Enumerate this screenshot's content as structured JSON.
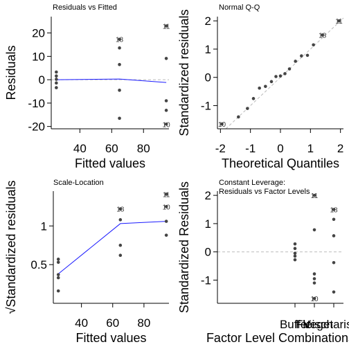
{
  "chart_data": [
    {
      "type": "scatter",
      "title": "Residuals vs Fitted",
      "xlabel": "Fitted values",
      "ylabel": "Residuals",
      "xlim": [
        22,
        96
      ],
      "ylim": [
        -21,
        27
      ],
      "xticks": [
        40,
        60,
        80
      ],
      "yticks": [
        -20,
        -10,
        0,
        10,
        20
      ],
      "reference_line": 0,
      "points": [
        {
          "x": 25.2,
          "y": 3.3
        },
        {
          "x": 25.2,
          "y": 1.6
        },
        {
          "x": 25.2,
          "y": 0.2
        },
        {
          "x": 25.2,
          "y": -1.4
        },
        {
          "x": 25.2,
          "y": -3.4
        },
        {
          "x": 64.9,
          "y": 13.6
        },
        {
          "x": 64.9,
          "y": 6.5
        },
        {
          "x": 64.9,
          "y": -4.5
        },
        {
          "x": 64.9,
          "y": -16.5
        },
        {
          "x": 94.3,
          "y": 9.1
        },
        {
          "x": 94.3,
          "y": -9.0
        },
        {
          "x": 94.3,
          "y": -13.1
        }
      ],
      "labeled_points": [
        {
          "label": "11",
          "x": 94.3,
          "y": 23.0
        },
        {
          "label": "18",
          "x": 64.9,
          "y": 17.3
        },
        {
          "label": "10",
          "x": 94.3,
          "y": -19.0
        }
      ],
      "smooth": {
        "x": [
          25.2,
          64.9,
          94.3
        ],
        "y": [
          0,
          0.3,
          -1.2
        ]
      }
    },
    {
      "type": "scatter",
      "title": "Normal Q-Q",
      "xlabel": "Theoretical Quantiles",
      "ylabel": "Standardized residuals",
      "xlim": [
        -2.1,
        2.1
      ],
      "ylim": [
        -1.82,
        2.15
      ],
      "xticks": [
        -2,
        -1,
        0,
        1,
        2
      ],
      "yticks": [
        -1,
        0,
        1,
        2
      ],
      "reference_line": "diagonal",
      "points": [
        {
          "x": -1.4,
          "y": -1.4
        },
        {
          "x": -1.1,
          "y": -1.1
        },
        {
          "x": -0.9,
          "y": -0.75
        },
        {
          "x": -0.7,
          "y": -0.38
        },
        {
          "x": -0.5,
          "y": -0.32
        },
        {
          "x": -0.3,
          "y": -0.15
        },
        {
          "x": -0.15,
          "y": 0.03
        },
        {
          "x": 0.0,
          "y": 0.05
        },
        {
          "x": 0.15,
          "y": 0.13
        },
        {
          "x": 0.3,
          "y": 0.3
        },
        {
          "x": 0.5,
          "y": 0.57
        },
        {
          "x": 0.7,
          "y": 0.76
        },
        {
          "x": 0.9,
          "y": 0.78
        },
        {
          "x": 1.1,
          "y": 1.15
        }
      ],
      "labeled_points": [
        {
          "label": "11",
          "x": 1.95,
          "y": 2.0
        },
        {
          "label": "18",
          "x": 1.4,
          "y": 1.5
        },
        {
          "label": "10",
          "x": -1.95,
          "y": -1.65
        }
      ]
    },
    {
      "type": "scatter",
      "title": "Scale-Location",
      "xlabel": "Fitted values",
      "ylabel": "Standardized residuals",
      "ylabel_prefix": "√",
      "xlim": [
        22,
        96
      ],
      "ylim": [
        0.0,
        1.45
      ],
      "xticks": [
        40,
        60,
        80
      ],
      "yticks": [
        0.5,
        1.0
      ],
      "points": [
        {
          "x": 25.2,
          "y": 0.57
        },
        {
          "x": 25.2,
          "y": 0.53
        },
        {
          "x": 25.2,
          "y": 0.37
        },
        {
          "x": 25.2,
          "y": 0.33
        },
        {
          "x": 25.2,
          "y": 0.16
        },
        {
          "x": 64.9,
          "y": 1.08
        },
        {
          "x": 64.9,
          "y": 0.75
        },
        {
          "x": 64.9,
          "y": 0.62
        },
        {
          "x": 94.3,
          "y": 1.06
        },
        {
          "x": 94.3,
          "y": 0.88
        }
      ],
      "labeled_points": [
        {
          "label": "11",
          "x": 94.3,
          "y": 1.41
        },
        {
          "label": "18",
          "x": 64.9,
          "y": 1.22
        },
        {
          "label": "10",
          "x": 94.3,
          "y": 1.25
        }
      ],
      "smooth": {
        "x": [
          25.2,
          64.9,
          94.3
        ],
        "y": [
          0.38,
          1.03,
          1.06
        ]
      }
    },
    {
      "type": "scatter",
      "title": "Constant Leverage:",
      "subtitle": "Residuals vs Factor Levels",
      "xlabel": "Factor Level Combinations",
      "ylabel": "Standardized Residuals",
      "xlim": [
        -3,
        3.5
      ],
      "ylim": [
        -1.82,
        2.15
      ],
      "categories": [
        "Buffet",
        "Fleisch",
        "Vegetarisch"
      ],
      "category_x": [
        1,
        2,
        3
      ],
      "yticks": [
        -1,
        0,
        1,
        2
      ],
      "reference_line": 0,
      "points": [
        {
          "x": 1,
          "y": 0.28
        },
        {
          "x": 1,
          "y": 0.12
        },
        {
          "x": 1,
          "y": -0.05
        },
        {
          "x": 1,
          "y": -0.15
        },
        {
          "x": 1,
          "y": -0.28
        },
        {
          "x": 2,
          "y": 0.78
        },
        {
          "x": 2,
          "y": -0.78
        },
        {
          "x": 2,
          "y": -0.95
        },
        {
          "x": 2,
          "y": -1.1
        },
        {
          "x": 3,
          "y": 1.15
        },
        {
          "x": 3,
          "y": 0.57
        },
        {
          "x": 3,
          "y": -0.38
        },
        {
          "x": 3,
          "y": -1.42
        }
      ],
      "labeled_points": [
        {
          "label": "11",
          "x": 2,
          "y": 2.0
        },
        {
          "label": "18",
          "x": 3,
          "y": 1.5
        },
        {
          "label": "10",
          "x": 2,
          "y": -1.65
        }
      ]
    }
  ]
}
